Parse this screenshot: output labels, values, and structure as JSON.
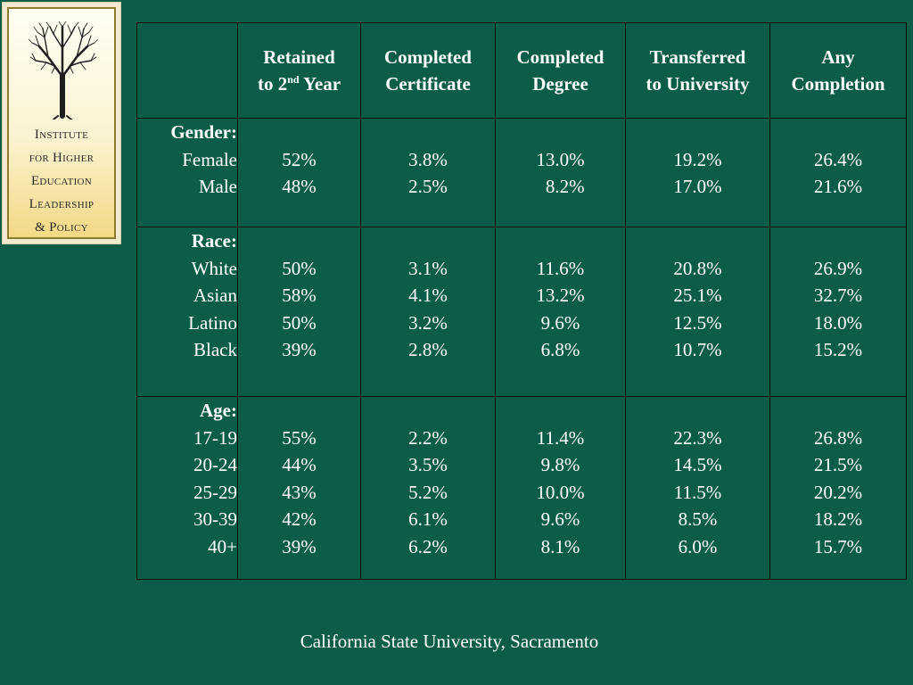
{
  "logo": {
    "lines": [
      "Institute",
      "for Higher",
      "Education",
      "Leadership",
      "& Policy"
    ]
  },
  "table": {
    "headers": {
      "retained_line1": "Retained",
      "retained_line2_pre": "to 2",
      "retained_line2_sup": "nd",
      "retained_line2_post": " Year",
      "certificate_line1": "Completed",
      "certificate_line2": "Certificate",
      "degree_line1": "Completed",
      "degree_line2": "Degree",
      "transferred_line1": "Transferred",
      "transferred_line2": "to University",
      "any_line1": "Any",
      "any_line2": "Completion"
    },
    "groups": [
      {
        "title": "Gender:",
        "rows": [
          {
            "label": "Female",
            "retained": "52%",
            "certificate": "3.8%",
            "degree": "13.0%",
            "transferred": "19.2%",
            "any": "26.4%"
          },
          {
            "label": "Male",
            "retained": "48%",
            "certificate": "2.5%",
            "degree": "  8.2%",
            "transferred": "17.0%",
            "any": "21.6%"
          }
        ]
      },
      {
        "title": "Race:",
        "rows": [
          {
            "label": "White",
            "retained": "50%",
            "certificate": "3.1%",
            "degree": "11.6%",
            "transferred": "20.8%",
            "any": "26.9%"
          },
          {
            "label": "Asian",
            "retained": "58%",
            "certificate": "4.1%",
            "degree": "13.2%",
            "transferred": "25.1%",
            "any": "32.7%"
          },
          {
            "label": "Latino",
            "retained": "50%",
            "certificate": "3.2%",
            "degree": "9.6%",
            "transferred": "12.5%",
            "any": "18.0%"
          },
          {
            "label": "Black",
            "retained": "39%",
            "certificate": "2.8%",
            "degree": "6.8%",
            "transferred": "10.7%",
            "any": "15.2%"
          }
        ]
      },
      {
        "title": "Age:",
        "rows": [
          {
            "label": "17-19",
            "retained": "55%",
            "certificate": "2.2%",
            "degree": "11.4%",
            "transferred": "22.3%",
            "any": "26.8%"
          },
          {
            "label": "20-24",
            "retained": "44%",
            "certificate": "3.5%",
            "degree": "9.8%",
            "transferred": "14.5%",
            "any": "21.5%"
          },
          {
            "label": "25-29",
            "retained": "43%",
            "certificate": "5.2%",
            "degree": "10.0%",
            "transferred": "11.5%",
            "any": "20.2%"
          },
          {
            "label": "30-39",
            "retained": "42%",
            "certificate": "6.1%",
            "degree": "9.6%",
            "transferred": "8.5%",
            "any": "18.2%"
          },
          {
            "label": "40+",
            "retained": "39%",
            "certificate": "6.2%",
            "degree": "8.1%",
            "transferred": "6.0%",
            "any": "15.7%"
          }
        ]
      }
    ]
  },
  "footer": {
    "text": "California State University, Sacramento"
  },
  "colors": {
    "background": "#0b5c49",
    "text": "#ffffff",
    "border": "#0a0a0a",
    "logo_frame": "#8c7d2e"
  }
}
